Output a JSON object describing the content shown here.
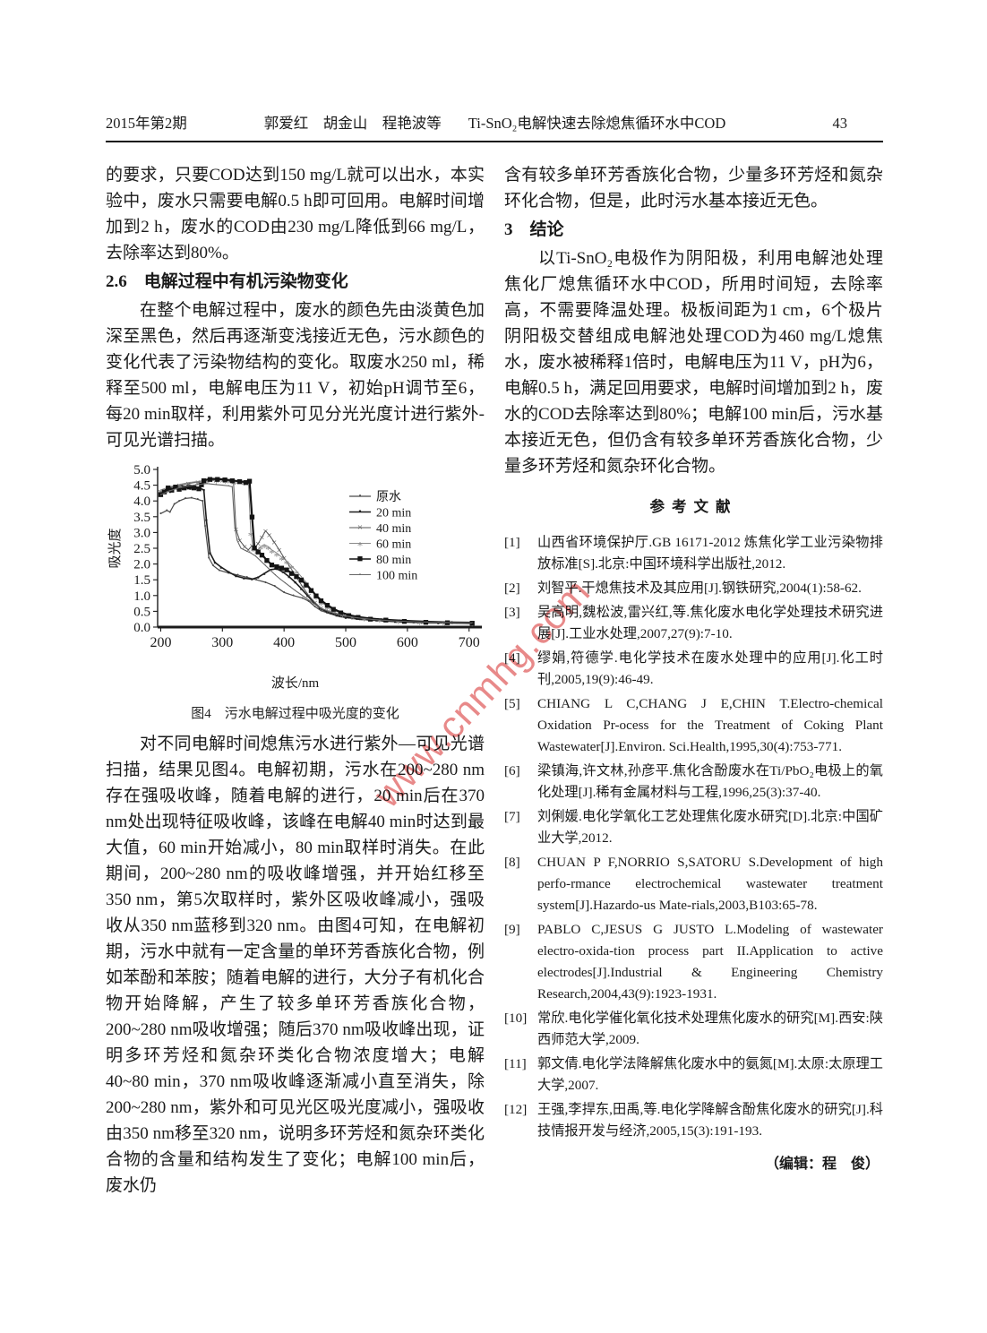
{
  "watermark": {
    "text": "www.cnmhg.com",
    "color": "#e26b6b"
  },
  "header": {
    "issue": "2015年第2期",
    "authors": "郭爱红　胡金山　程艳波等",
    "title": "Ti-SnO₂电解快速去除熄焦循环水中COD",
    "page_number": "43"
  },
  "left_column": {
    "p1": "的要求，只要COD达到150 mg/L就可以出水，本实验中，废水只需要电解0.5 h即可回用。电解时间增加到2 h，废水的COD由230 mg/L降低到66 mg/L，去除率达到80%。",
    "h26": "2.6　电解过程中有机污染物变化",
    "p2": "在整个电解过程中，废水的颜色先由淡黄色加深至黑色，然后再逐渐变浅接近无色，污水颜色的变化代表了污染物结构的变化。取废水250 ml，稀释至500 ml，电解电压为11 V，初始pH调节至6，每20 min取样，利用紫外可见分光光度计进行紫外-可见光谱扫描。",
    "p3": "对不同电解时间熄焦污水进行紫外—可见光谱扫描，结果见图4。电解初期，污水在200~280 nm存在强吸收峰，随着电解的进行，20 min后在370 nm处出现特征吸收峰，该峰在电解40 min时达到最大值，60 min开始减小，80 min取样时消失。在此期间，200~280 nm的吸收峰增强，并开始红移至350 nm，第5次取样时，紫外区吸收峰减小，强吸收从350 nm蓝移到320 nm。由图4可知，在电解初期，污水中就有一定含量的单环芳香族化合物，例如苯酚和苯胺；随着电解的进行，大分子有机化合物开始降解，产生了较多单环芳香族化合物，200~280 nm吸收增强；随后370 nm吸收峰出现，证明多环芳烃和氮杂环类化合物浓度增大；电解40~80 min，370 nm吸收峰逐渐减小直至消失，除200~280 nm，紫外和可见光区吸光度减小，强吸收由350 nm移至320 nm，说明多环芳烃和氮杂环类化合物的含量和结构发生了变化；电解100 min后，废水仍"
  },
  "figure": {
    "caption": "图4　污水电解过程中吸光度的变化",
    "xlabel": "波长/nm"
  },
  "chart_data": {
    "type": "line",
    "title": "图4 污水电解过程中吸光度的变化",
    "xlabel": "波长/nm",
    "ylabel": "吸光度",
    "xlim": [
      195,
      712
    ],
    "ylim": [
      0,
      5
    ],
    "xticks": [
      200,
      300,
      400,
      500,
      600,
      700
    ],
    "yticks": [
      0.0,
      0.5,
      1.0,
      1.5,
      2.0,
      2.5,
      3.0,
      3.5,
      4.0,
      4.5,
      5.0
    ],
    "grid": false,
    "legend_position": "upper right",
    "series": [
      {
        "name": "原水",
        "marker": "dot",
        "color": "#4a4a4a",
        "width": 1.2,
        "points": [
          [
            200,
            3.6
          ],
          [
            210,
            3.7
          ],
          [
            215,
            3.65
          ],
          [
            222,
            3.9
          ],
          [
            230,
            4.0
          ],
          [
            240,
            4.08
          ],
          [
            250,
            4.1
          ],
          [
            260,
            4.05
          ],
          [
            268,
            4.0
          ],
          [
            272,
            3.2
          ],
          [
            278,
            2.2
          ],
          [
            285,
            1.95
          ],
          [
            295,
            1.8
          ],
          [
            310,
            1.72
          ],
          [
            325,
            1.65
          ],
          [
            340,
            1.58
          ],
          [
            355,
            1.5
          ],
          [
            370,
            1.42
          ],
          [
            385,
            1.3
          ],
          [
            400,
            1.1
          ],
          [
            415,
            1.0
          ],
          [
            430,
            0.92
          ],
          [
            440,
            0.82
          ],
          [
            450,
            0.65
          ],
          [
            460,
            0.52
          ],
          [
            475,
            0.42
          ],
          [
            490,
            0.33
          ],
          [
            510,
            0.27
          ],
          [
            530,
            0.23
          ],
          [
            560,
            0.19
          ],
          [
            590,
            0.16
          ],
          [
            620,
            0.14
          ],
          [
            650,
            0.13
          ],
          [
            680,
            0.12
          ],
          [
            705,
            0.11
          ]
        ]
      },
      {
        "name": "20 min",
        "marker": "square",
        "color": "#1e1e1e",
        "width": 1.6,
        "points": [
          [
            200,
            4.25
          ],
          [
            208,
            4.35
          ],
          [
            215,
            4.3
          ],
          [
            222,
            4.45
          ],
          [
            230,
            4.5
          ],
          [
            240,
            4.45
          ],
          [
            248,
            4.4
          ],
          [
            256,
            4.45
          ],
          [
            264,
            4.4
          ],
          [
            270,
            4.35
          ],
          [
            274,
            3.4
          ],
          [
            280,
            2.35
          ],
          [
            288,
            2.05
          ],
          [
            298,
            1.9
          ],
          [
            310,
            1.75
          ],
          [
            322,
            1.62
          ],
          [
            335,
            1.55
          ],
          [
            348,
            1.52
          ],
          [
            358,
            1.58
          ],
          [
            368,
            1.7
          ],
          [
            378,
            1.82
          ],
          [
            388,
            1.85
          ],
          [
            398,
            1.75
          ],
          [
            408,
            1.6
          ],
          [
            418,
            1.42
          ],
          [
            428,
            1.22
          ],
          [
            438,
            1.0
          ],
          [
            448,
            0.78
          ],
          [
            458,
            0.6
          ],
          [
            470,
            0.48
          ],
          [
            485,
            0.38
          ],
          [
            500,
            0.31
          ],
          [
            525,
            0.26
          ],
          [
            550,
            0.22
          ],
          [
            580,
            0.18
          ],
          [
            610,
            0.16
          ],
          [
            650,
            0.14
          ],
          [
            705,
            0.12
          ]
        ]
      },
      {
        "name": "40 min",
        "marker": "x",
        "color": "#555555",
        "width": 1.0,
        "points": [
          [
            200,
            4.3
          ],
          [
            215,
            4.42
          ],
          [
            230,
            4.5
          ],
          [
            245,
            4.55
          ],
          [
            260,
            4.6
          ],
          [
            270,
            4.65
          ],
          [
            285,
            4.67
          ],
          [
            300,
            4.66
          ],
          [
            312,
            4.62
          ],
          [
            318,
            4.6
          ],
          [
            322,
            3.1
          ],
          [
            328,
            2.75
          ],
          [
            336,
            2.55
          ],
          [
            342,
            2.45
          ],
          [
            348,
            2.58
          ],
          [
            352,
            2.5
          ],
          [
            358,
            2.65
          ],
          [
            364,
            2.85
          ],
          [
            370,
            3.05
          ],
          [
            376,
            2.92
          ],
          [
            384,
            2.7
          ],
          [
            392,
            2.45
          ],
          [
            400,
            2.2
          ],
          [
            410,
            1.9
          ],
          [
            420,
            1.58
          ],
          [
            430,
            1.28
          ],
          [
            440,
            1.0
          ],
          [
            450,
            0.78
          ],
          [
            460,
            0.6
          ],
          [
            472,
            0.5
          ],
          [
            486,
            0.42
          ],
          [
            500,
            0.35
          ],
          [
            525,
            0.28
          ],
          [
            555,
            0.23
          ],
          [
            590,
            0.2
          ],
          [
            630,
            0.17
          ],
          [
            670,
            0.15
          ],
          [
            705,
            0.14
          ]
        ]
      },
      {
        "name": "60 min",
        "marker": "asterisk",
        "color": "#8a8a8a",
        "width": 1.0,
        "points": [
          [
            200,
            4.35
          ],
          [
            215,
            4.45
          ],
          [
            230,
            4.52
          ],
          [
            245,
            4.58
          ],
          [
            260,
            4.62
          ],
          [
            275,
            4.66
          ],
          [
            290,
            4.68
          ],
          [
            305,
            4.66
          ],
          [
            320,
            4.63
          ],
          [
            335,
            4.6
          ],
          [
            342,
            4.62
          ],
          [
            346,
            3.0
          ],
          [
            350,
            2.5
          ],
          [
            356,
            2.42
          ],
          [
            362,
            2.55
          ],
          [
            368,
            2.62
          ],
          [
            374,
            2.55
          ],
          [
            380,
            2.45
          ],
          [
            388,
            2.35
          ],
          [
            396,
            2.22
          ],
          [
            404,
            2.1
          ],
          [
            412,
            1.95
          ],
          [
            420,
            1.78
          ],
          [
            428,
            1.6
          ],
          [
            436,
            1.42
          ],
          [
            444,
            1.2
          ],
          [
            452,
            0.98
          ],
          [
            460,
            0.8
          ],
          [
            470,
            0.65
          ],
          [
            482,
            0.52
          ],
          [
            495,
            0.43
          ],
          [
            510,
            0.36
          ],
          [
            530,
            0.3
          ],
          [
            555,
            0.25
          ],
          [
            585,
            0.21
          ],
          [
            620,
            0.18
          ],
          [
            660,
            0.16
          ],
          [
            705,
            0.14
          ]
        ]
      },
      {
        "name": "80 min",
        "marker": "square-large",
        "color": "#141414",
        "width": 2.2,
        "points": [
          [
            200,
            4.22
          ],
          [
            206,
            4.3
          ],
          [
            212,
            4.42
          ],
          [
            218,
            4.35
          ],
          [
            224,
            4.45
          ],
          [
            230,
            4.38
          ],
          [
            238,
            4.42
          ],
          [
            246,
            4.46
          ],
          [
            254,
            4.42
          ],
          [
            262,
            4.4
          ],
          [
            266,
            4.52
          ],
          [
            270,
            4.65
          ],
          [
            280,
            4.7
          ],
          [
            292,
            4.7
          ],
          [
            304,
            4.68
          ],
          [
            316,
            4.65
          ],
          [
            328,
            4.62
          ],
          [
            338,
            4.6
          ],
          [
            344,
            4.64
          ],
          [
            348,
            3.5
          ],
          [
            352,
            2.52
          ],
          [
            358,
            2.4
          ],
          [
            364,
            2.3
          ],
          [
            372,
            2.12
          ],
          [
            380,
            1.98
          ],
          [
            388,
            1.92
          ],
          [
            396,
            1.88
          ],
          [
            404,
            1.82
          ],
          [
            412,
            1.72
          ],
          [
            420,
            1.62
          ],
          [
            428,
            1.5
          ],
          [
            436,
            1.35
          ],
          [
            444,
            1.18
          ],
          [
            452,
            1.0
          ],
          [
            460,
            0.85
          ],
          [
            470,
            0.7
          ],
          [
            480,
            0.58
          ],
          [
            492,
            0.47
          ],
          [
            505,
            0.38
          ],
          [
            520,
            0.32
          ],
          [
            540,
            0.27
          ],
          [
            565,
            0.23
          ],
          [
            595,
            0.2
          ],
          [
            630,
            0.17
          ],
          [
            665,
            0.15
          ],
          [
            705,
            0.14
          ]
        ]
      },
      {
        "name": "100 min",
        "marker": "dot-small",
        "color": "#666666",
        "width": 1.1,
        "points": [
          [
            200,
            4.2
          ],
          [
            215,
            4.32
          ],
          [
            230,
            4.42
          ],
          [
            245,
            4.48
          ],
          [
            260,
            4.52
          ],
          [
            275,
            4.55
          ],
          [
            290,
            4.52
          ],
          [
            300,
            4.5
          ],
          [
            310,
            4.48
          ],
          [
            316,
            4.45
          ],
          [
            320,
            3.2
          ],
          [
            324,
            2.75
          ],
          [
            330,
            2.5
          ],
          [
            338,
            2.42
          ],
          [
            346,
            2.35
          ],
          [
            354,
            2.25
          ],
          [
            362,
            2.1
          ],
          [
            370,
            1.95
          ],
          [
            378,
            1.8
          ],
          [
            386,
            1.65
          ],
          [
            394,
            1.52
          ],
          [
            402,
            1.4
          ],
          [
            410,
            1.28
          ],
          [
            418,
            1.16
          ],
          [
            426,
            1.05
          ],
          [
            434,
            0.94
          ],
          [
            442,
            0.83
          ],
          [
            450,
            0.72
          ],
          [
            460,
            0.6
          ],
          [
            472,
            0.5
          ],
          [
            485,
            0.42
          ],
          [
            500,
            0.35
          ],
          [
            520,
            0.29
          ],
          [
            545,
            0.24
          ],
          [
            575,
            0.2
          ],
          [
            610,
            0.17
          ],
          [
            650,
            0.15
          ],
          [
            705,
            0.13
          ]
        ]
      }
    ]
  },
  "right_column": {
    "p1": "含有较多单环芳香族化合物，少量多环芳烃和氮杂环化合物，但是，此时污水基本接近无色。",
    "h3": "3　结论",
    "p2": "以Ti-SnO₂电极作为阴阳极，利用电解池处理焦化厂熄焦循环水中COD，所用时间短，去除率高，不需要降温处理。极板间距为1 cm，6个极片阴阳极交替组成电解池处理COD为460 mg/L熄焦水，废水被稀释1倍时，电解电压为11 V，pH为6，电解0.5 h，满足回用要求，电解时间增加到2 h，废水的COD去除率达到80%；电解100 min后，污水基本接近无色，但仍含有较多单环芳香族化合物，少量多环芳烃和氮杂环化合物。",
    "references_title": "参考文献",
    "references": [
      {
        "num": "[1]",
        "text": "山西省环境保护厅.GB 16171-2012 炼焦化学工业污染物排放标准[S].北京:中国环境科学出版社,2012."
      },
      {
        "num": "[2]",
        "text": "刘智平.干熄焦技术及其应用[J].钢铁研究,2004(1):58-62."
      },
      {
        "num": "[3]",
        "text": "吴高明,魏松波,雷兴红,等.焦化废水电化学处理技术研究进展[J].工业水处理,2007,27(9):7-10."
      },
      {
        "num": "[4]",
        "text": "缪娟,符德学.电化学技术在废水处理中的应用[J].化工时刊,2005,19(9):46-49."
      },
      {
        "num": "[5]",
        "text": "CHIANG L C,CHANG J E,CHIN T.Electro-chemical Oxidation Pr-ocess for the Treatment of Coking Plant Wastewater[J].Environ. Sci.Health,1995,30(4):753-771."
      },
      {
        "num": "[6]",
        "text": "梁镇海,许文林,孙彦平.焦化含酚废水在Ti/PbO₂电极上的氧化处理[J].稀有金属材料与工程,1996,25(3):37-40."
      },
      {
        "num": "[7]",
        "text": "刘俐媛.电化学氧化工艺处理焦化废水研究[D].北京:中国矿业大学,2012."
      },
      {
        "num": "[8]",
        "text": "CHUAN P F,NORRIO S,SATORU S.Development of high perfo-rmance electrochemical wastewater treatment system[J].Hazardo-us Mate-rials,2003,B103:65-78."
      },
      {
        "num": "[9]",
        "text": "PABLO C,JESUS G JUSTO L.Modeling of wastewater electro-oxida-tion process part II.Application to active electrodes[J].Industrial & Engineering Chemistry Research,2004,43(9):1923-1931."
      },
      {
        "num": "[10]",
        "text": "常欣.电化学催化氧化技术处理焦化废水的研究[M].西安:陕西师范大学,2009."
      },
      {
        "num": "[11]",
        "text": "郭文倩.电化学法降解焦化废水中的氨氮[M].太原:太原理工大学,2007."
      },
      {
        "num": "[12]",
        "text": "王强,李捍东,田禹,等.电化学降解含酚焦化废水的研究[J].科技情报开发与经济,2005,15(3):191-193."
      }
    ],
    "editor": "（编辑：程　俊）"
  }
}
